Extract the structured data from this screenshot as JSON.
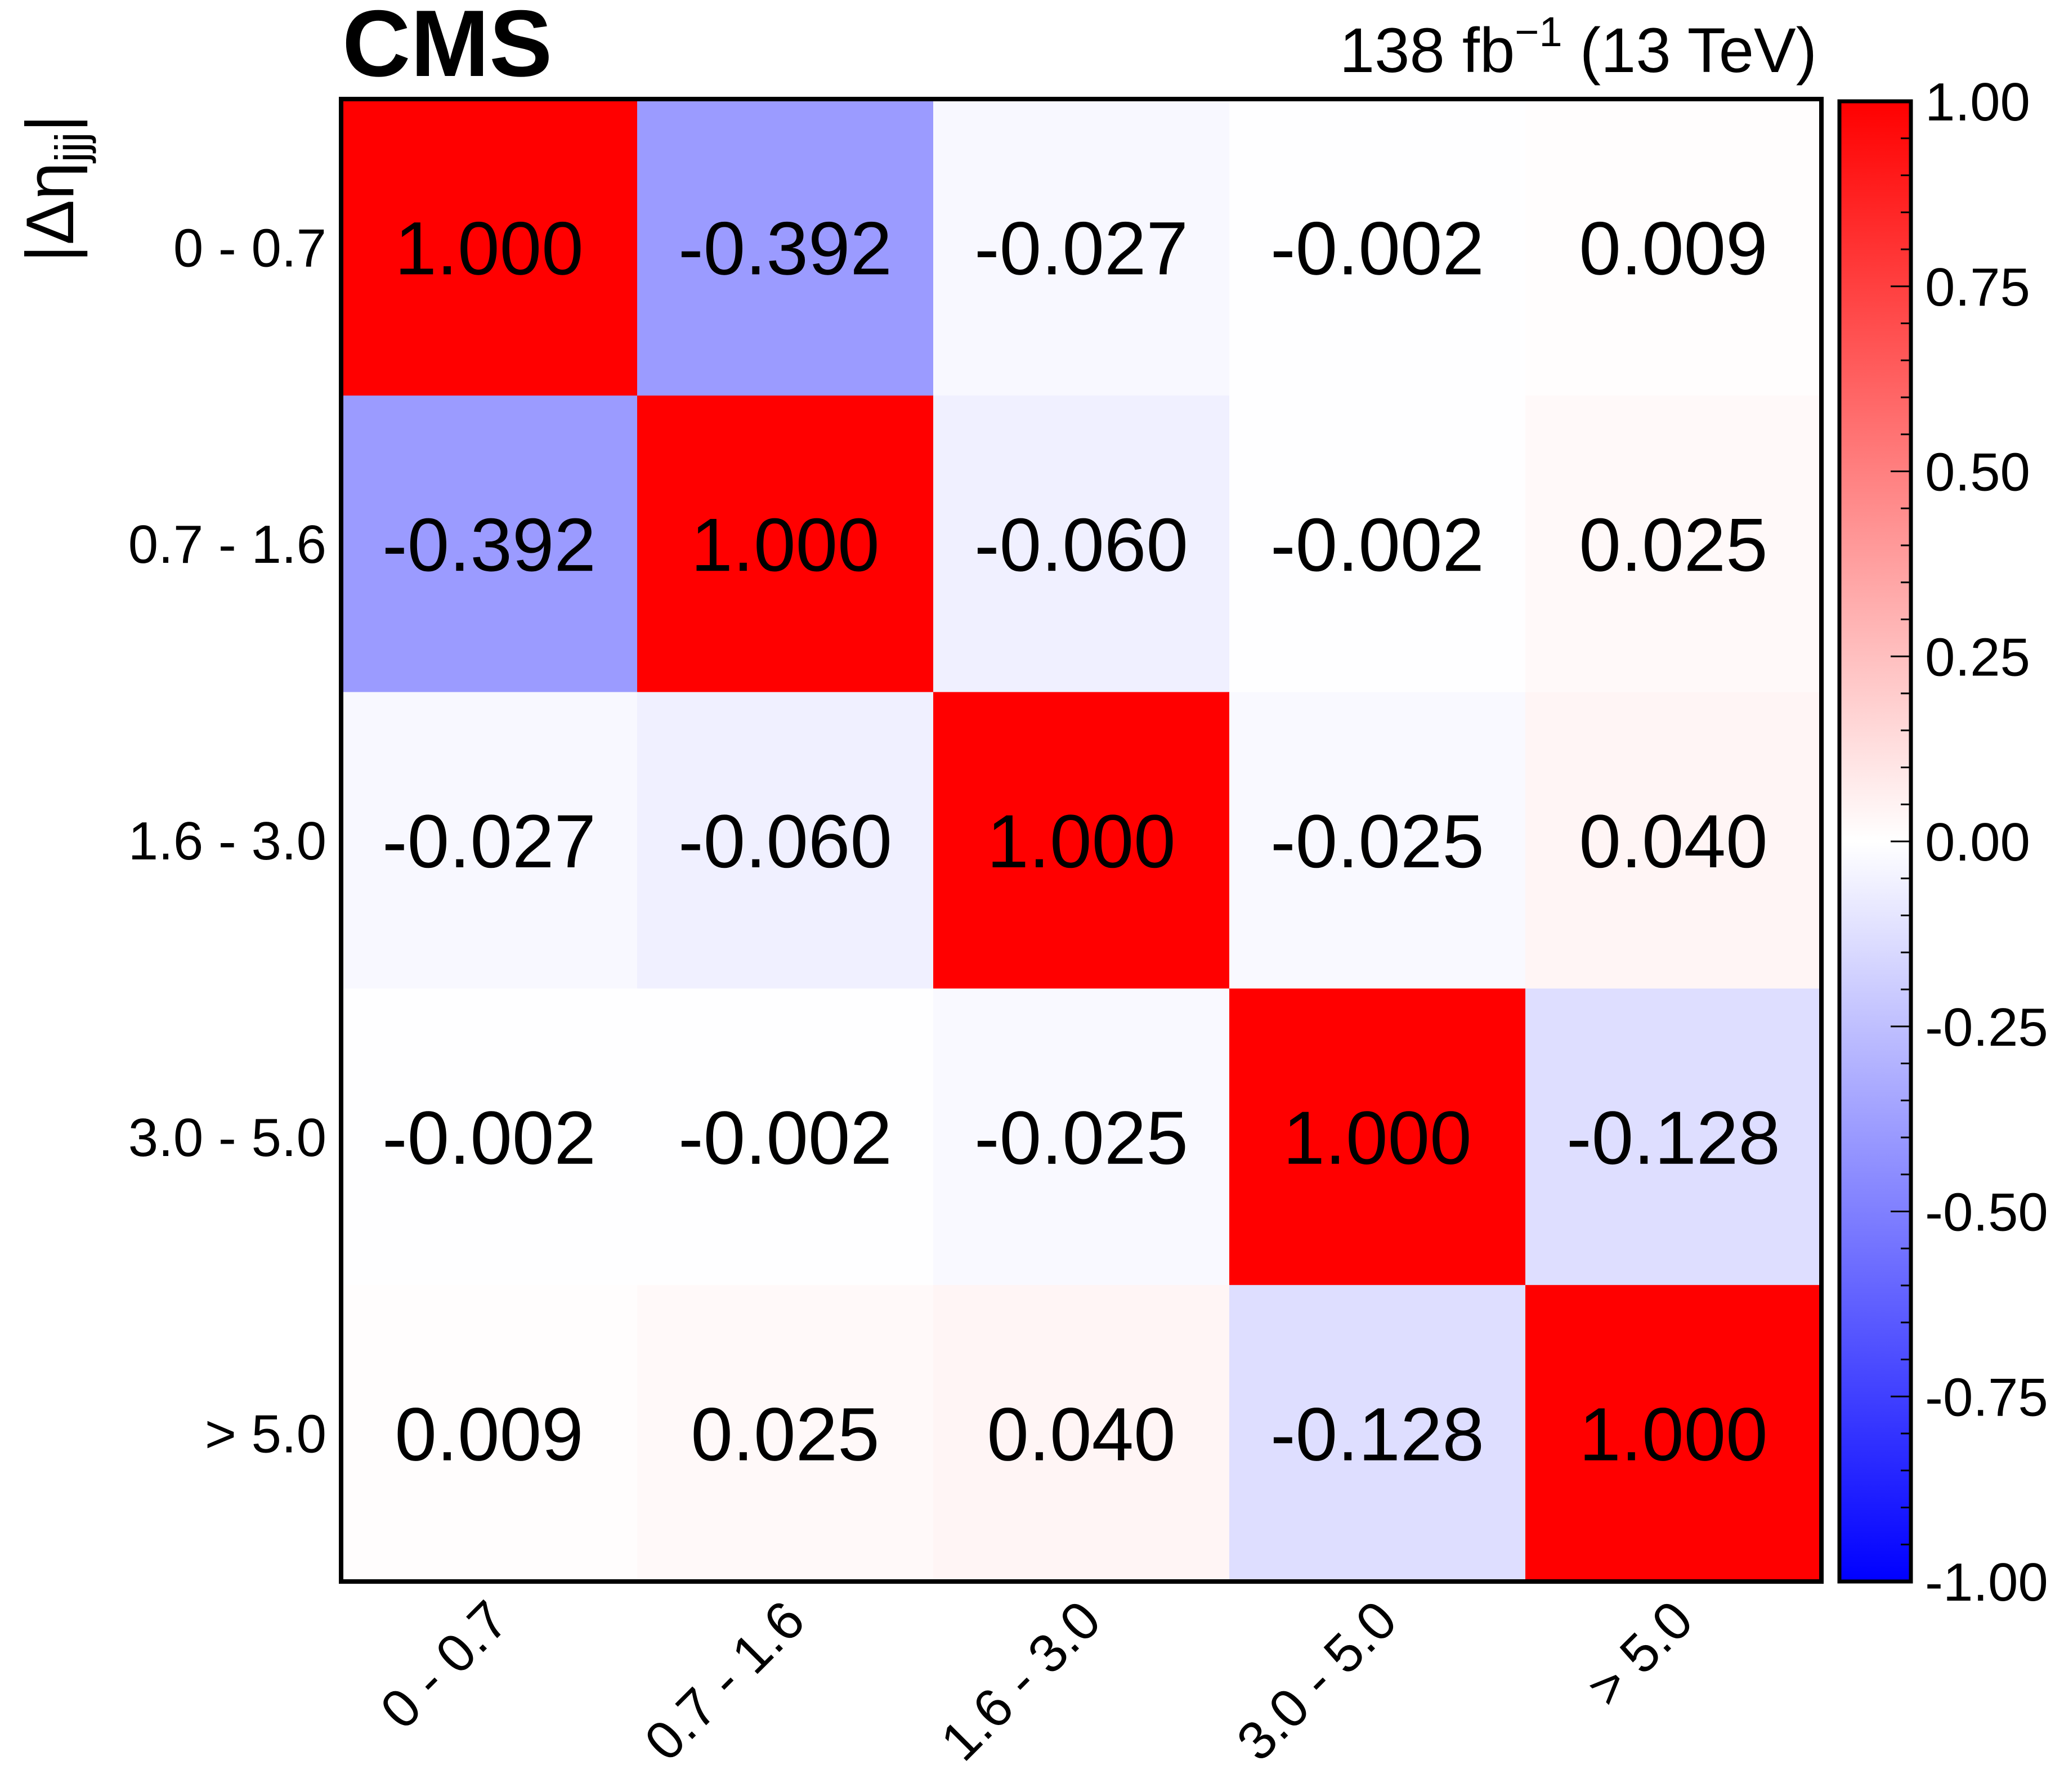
{
  "header": {
    "experiment": "CMS",
    "lumi_main": "138 fb",
    "lumi_exp": "−1",
    "lumi_tail": " (13 TeV)"
  },
  "chart_data": {
    "type": "heatmap",
    "title": "",
    "ylabel_delta": "Δη",
    "ylabel_sub": "jjj",
    "xlabel": "",
    "x_categories": [
      "0 - 0.7",
      "0.7 - 1.6",
      "1.6 - 3.0",
      "3.0 - 5.0",
      "> 5.0"
    ],
    "y_categories": [
      "0 - 0.7",
      "0.7 - 1.6",
      "1.6 - 3.0",
      "3.0 - 5.0",
      "> 5.0"
    ],
    "matrix": [
      [
        1.0,
        -0.392,
        -0.027,
        -0.002,
        0.009
      ],
      [
        -0.392,
        1.0,
        -0.06,
        -0.002,
        0.025
      ],
      [
        -0.027,
        -0.06,
        1.0,
        -0.025,
        0.04
      ],
      [
        -0.002,
        -0.002,
        -0.025,
        1.0,
        -0.128
      ],
      [
        0.009,
        0.025,
        0.04,
        -0.128,
        1.0
      ]
    ],
    "zlim": [
      -1.0,
      1.0
    ],
    "colorbar_ticks": [
      "1.00",
      "0.75",
      "0.50",
      "0.25",
      "0.00",
      "-0.25",
      "-0.50",
      "-0.75",
      "-1.00"
    ],
    "colorscale": {
      "low": "#0000ff",
      "mid": "#ffffff",
      "high": "#ff0000"
    }
  }
}
